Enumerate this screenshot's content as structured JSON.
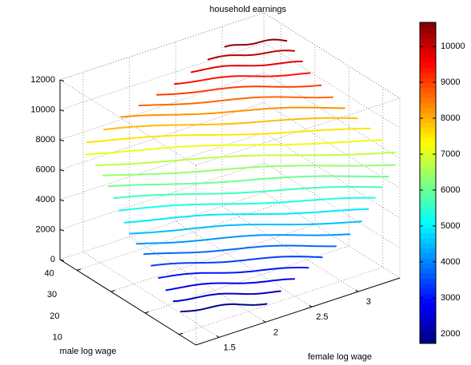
{
  "chart_data": {
    "type": "contour3",
    "title": "household earnings",
    "xlabel": "female log wage",
    "ylabel": "male log wage",
    "xlim": [
      1.25,
      3.45
    ],
    "xticks": [
      1.5,
      2,
      2.5,
      3
    ],
    "ylim": [
      5,
      45
    ],
    "yticks": [
      10,
      20,
      30,
      40
    ],
    "zlim": [
      0,
      12000
    ],
    "zticks": [
      0,
      2000,
      4000,
      6000,
      8000,
      10000,
      12000
    ],
    "levels": [
      1900,
      2275,
      2650,
      3025,
      3400,
      3775,
      4150,
      4525,
      4900,
      5275,
      5650,
      6025,
      6400,
      6775,
      7150,
      7525,
      7900,
      8275,
      8650,
      9025,
      9400,
      9775,
      10150,
      10525
    ],
    "colormap": "jet",
    "clim": [
      1730,
      10670
    ],
    "cticks": [
      2000,
      3000,
      4000,
      5000,
      6000,
      7000,
      8000,
      9000,
      10000
    ],
    "grid": true
  }
}
